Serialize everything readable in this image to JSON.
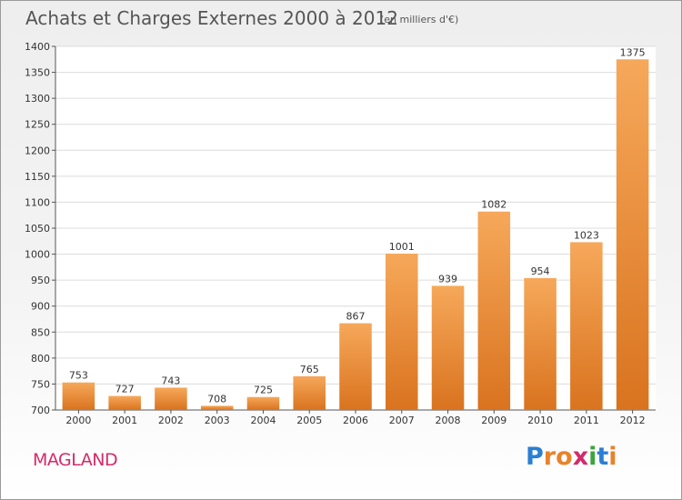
{
  "chart_data": {
    "type": "bar",
    "title": "Achats et Charges Externes 2000 à 2012",
    "subtitle": "(en milliers d'€)",
    "categories": [
      "2000",
      "2001",
      "2002",
      "2003",
      "2004",
      "2005",
      "2006",
      "2007",
      "2008",
      "2009",
      "2010",
      "2011",
      "2012"
    ],
    "values": [
      753,
      727,
      743,
      708,
      725,
      765,
      867,
      1001,
      939,
      1082,
      954,
      1023,
      1375
    ],
    "ylim": [
      700,
      1400
    ],
    "yticks": [
      700,
      750,
      800,
      850,
      900,
      950,
      1000,
      1050,
      1100,
      1150,
      1200,
      1250,
      1300,
      1350,
      1400
    ],
    "grid": true,
    "bar_color_top": "#f6a85a",
    "bar_color_bottom": "#d9731f"
  },
  "footer": {
    "place": "MAGLAND",
    "brand_letters": [
      "P",
      "r",
      "o",
      "x",
      "i",
      "t",
      "i"
    ],
    "brand_colors": [
      "#2a7fd4",
      "#e8832a",
      "#e8832a",
      "#d42a6a",
      "#3aa53a",
      "#2a7fd4",
      "#e8832a"
    ]
  }
}
